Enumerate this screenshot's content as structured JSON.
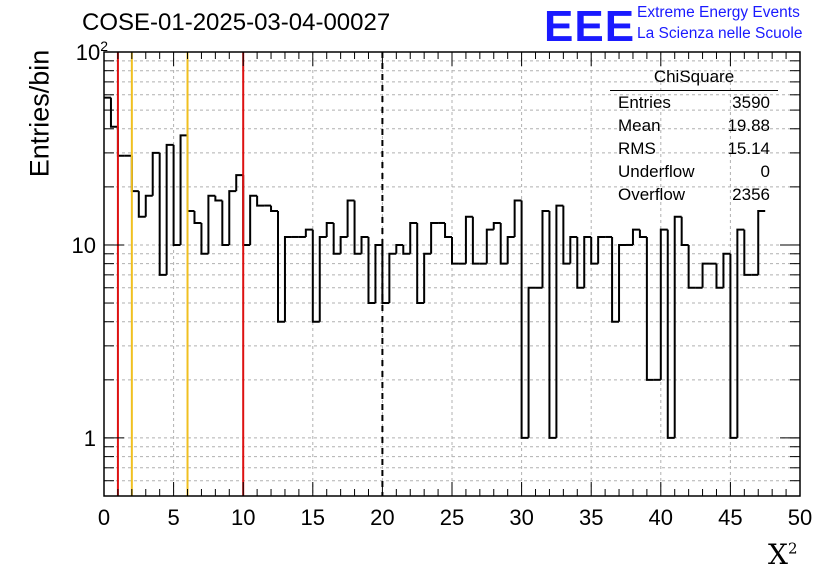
{
  "header": {
    "title": "COSE-01-2025-03-04-00027",
    "logo": "EEE",
    "logo_line1": "Extreme Energy Events",
    "logo_line2": "La Scienza nelle Scuole"
  },
  "stats": {
    "title": "ChiSquare",
    "rows": [
      {
        "key": "Entries",
        "value": "3590"
      },
      {
        "key": "Mean",
        "value": "19.88"
      },
      {
        "key": "RMS",
        "value": "15.14"
      },
      {
        "key": "Underflow",
        "value": "0"
      },
      {
        "key": "Overflow",
        "value": "2356"
      }
    ]
  },
  "colors": {
    "histogram": "#000000",
    "line_red": "#dd1111",
    "line_yellow": "#f0c020",
    "grid": "#b0b0b0"
  },
  "chart_data": {
    "type": "histogram",
    "title": "COSE-01-2025-03-04-00027",
    "xlabel": "X²",
    "ylabel": "Entries/bin",
    "xlim": [
      0,
      50
    ],
    "ylim": [
      0.5,
      100
    ],
    "yscale": "log",
    "grid": true,
    "bin_width": 0.5,
    "xticks": [
      0,
      5,
      10,
      15,
      20,
      25,
      30,
      35,
      40,
      45,
      50
    ],
    "yticks": [
      {
        "value": 1,
        "label": "1"
      },
      {
        "value": 10,
        "label": "10"
      },
      {
        "value": 100,
        "label": "10²"
      }
    ],
    "counts": [
      58,
      41,
      29,
      29,
      19,
      14,
      18,
      30,
      7,
      33,
      10,
      37,
      15,
      13,
      9,
      18,
      17,
      10,
      19,
      23,
      10,
      18,
      16,
      16,
      15,
      4,
      11,
      11,
      11,
      12,
      4,
      11,
      13,
      9,
      11,
      17,
      9,
      11,
      5,
      10,
      5,
      9,
      10,
      9,
      13,
      5,
      9,
      13,
      13,
      11,
      8,
      8,
      14,
      8,
      8,
      12,
      13,
      8,
      11,
      17,
      1,
      6,
      6,
      15,
      1,
      16,
      8,
      11,
      6,
      11,
      8,
      11,
      11,
      4,
      10,
      10,
      12,
      11,
      2,
      2,
      12,
      1,
      14,
      10,
      6,
      6,
      8,
      8,
      6,
      9,
      1,
      12,
      7,
      7,
      15
    ],
    "vertical_lines": [
      {
        "x": 1,
        "color": "red",
        "style": "solid"
      },
      {
        "x": 2,
        "color": "yellow",
        "style": "solid"
      },
      {
        "x": 6,
        "color": "yellow",
        "style": "solid"
      },
      {
        "x": 10,
        "color": "red",
        "style": "solid"
      },
      {
        "x": 20,
        "color": "black",
        "style": "dashed"
      }
    ]
  }
}
